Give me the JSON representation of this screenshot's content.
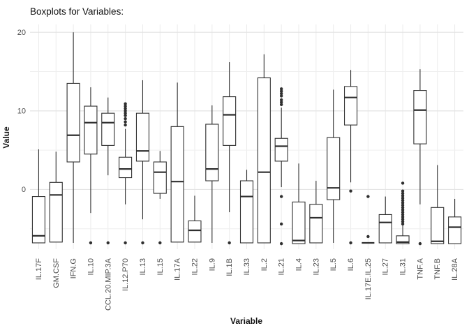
{
  "title": "Boxplots for Variables:",
  "y_axis": {
    "label": "Value",
    "ticks": [
      0,
      10,
      20
    ],
    "minor_ticks": [
      -5,
      5,
      15
    ],
    "ylim": [
      -7.6,
      21.0
    ]
  },
  "x_axis": {
    "label": "Variable"
  },
  "colors": {
    "box_stroke": "#2f2f2f",
    "grid_major": "#e4e4e4",
    "grid_minor": "#efefef",
    "grid_vertical": "#ebebeb",
    "tick_text": "#4d4d4d",
    "panel_bg": "#ffffff"
  },
  "chart_data": {
    "type": "boxplot",
    "title": "Boxplots for Variables:",
    "xlabel": "Variable",
    "ylabel": "Value",
    "ylim": [
      -7.6,
      21.0
    ],
    "grid": true,
    "categories": [
      "IL.17F",
      "GM.CSF",
      "IFN.G",
      "IL.10",
      "CCL.20.MIP.3A",
      "IL.12.P70",
      "IL.13",
      "IL.15",
      "IL.17A",
      "IL.22",
      "IL.9",
      "IL.1B",
      "IL.33",
      "IL.2",
      "IL.21",
      "IL.4",
      "IL.23",
      "IL.5",
      "IL.6",
      "IL.17E.IL.25",
      "IL.27",
      "IL.31",
      "TNF.A",
      "TNF.B",
      "IL.28A"
    ],
    "boxes": [
      {
        "label": "IL.17F",
        "low": -6.8,
        "q1": -6.8,
        "med": -5.9,
        "q3": -0.9,
        "high": 5.1,
        "outliers": []
      },
      {
        "label": "GM.CSF",
        "low": -6.7,
        "q1": -6.7,
        "med": -0.7,
        "q3": 0.9,
        "high": 4.8,
        "outliers": []
      },
      {
        "label": "IFN.G",
        "low": -6.8,
        "q1": 3.5,
        "med": 6.9,
        "q3": 13.5,
        "high": 20.0,
        "outliers": []
      },
      {
        "label": "IL.10",
        "low": -3.0,
        "q1": 4.5,
        "med": 8.5,
        "q3": 10.6,
        "high": 13.0,
        "outliers": [
          -6.8
        ]
      },
      {
        "label": "CCL.20.MIP.3A",
        "low": 1.8,
        "q1": 5.6,
        "med": 8.5,
        "q3": 9.7,
        "high": 11.7,
        "outliers": [
          -6.8
        ]
      },
      {
        "label": "IL.12.P70",
        "low": -1.9,
        "q1": 1.5,
        "med": 2.6,
        "q3": 4.1,
        "high": 7.7,
        "outliers": [
          10.9,
          10.6,
          10.3,
          10.0,
          9.7,
          9.4,
          9.0,
          8.6,
          8.2,
          -6.8
        ]
      },
      {
        "label": "IL.13",
        "low": -3.8,
        "q1": 3.6,
        "med": 4.9,
        "q3": 9.7,
        "high": 13.9,
        "outliers": [
          -6.8
        ]
      },
      {
        "label": "IL.15",
        "low": -1.2,
        "q1": -0.5,
        "med": 2.2,
        "q3": 3.5,
        "high": 4.9,
        "outliers": [
          -6.8
        ]
      },
      {
        "label": "IL.17A",
        "low": -6.7,
        "q1": -6.7,
        "med": 1.0,
        "q3": 8.0,
        "high": 13.6,
        "outliers": []
      },
      {
        "label": "IL.22",
        "low": -6.7,
        "q1": -6.7,
        "med": -5.2,
        "q3": -4.0,
        "high": -0.8,
        "outliers": []
      },
      {
        "label": "IL.9",
        "low": -6.8,
        "q1": 1.1,
        "med": 2.6,
        "q3": 8.3,
        "high": 10.7,
        "outliers": []
      },
      {
        "label": "IL.1B",
        "low": -2.9,
        "q1": 5.6,
        "med": 9.5,
        "q3": 11.8,
        "high": 16.2,
        "outliers": [
          -6.8
        ]
      },
      {
        "label": "IL.33",
        "low": -6.8,
        "q1": -6.8,
        "med": -0.9,
        "q3": 1.1,
        "high": 2.5,
        "outliers": []
      },
      {
        "label": "IL.2",
        "low": -6.8,
        "q1": -6.8,
        "med": 2.2,
        "q3": 14.2,
        "high": 17.2,
        "outliers": []
      },
      {
        "label": "IL.21",
        "low": 0.3,
        "q1": 3.6,
        "med": 5.5,
        "q3": 6.5,
        "high": 10.4,
        "outliers": [
          12.8,
          12.5,
          12.2,
          11.9,
          11.4,
          11.1,
          10.8,
          -0.9,
          -4.4,
          -6.9
        ]
      },
      {
        "label": "IL.4",
        "low": -6.9,
        "q1": -6.9,
        "med": -6.5,
        "q3": -1.6,
        "high": 3.3,
        "outliers": []
      },
      {
        "label": "IL.23",
        "low": -6.8,
        "q1": -6.8,
        "med": -3.6,
        "q3": -1.9,
        "high": 1.1,
        "outliers": []
      },
      {
        "label": "IL.5",
        "low": -6.8,
        "q1": -1.3,
        "med": 0.2,
        "q3": 6.6,
        "high": 12.7,
        "outliers": []
      },
      {
        "label": "IL.6",
        "low": 0.9,
        "q1": 8.2,
        "med": 11.7,
        "q3": 13.1,
        "high": 15.2,
        "outliers": [
          -0.2,
          -6.8
        ]
      },
      {
        "label": "IL.17E.IL.25",
        "low": -6.8,
        "q1": -6.8,
        "med": -6.8,
        "q3": -6.8,
        "high": -6.8,
        "outliers": [
          -0.9,
          -6.0
        ]
      },
      {
        "label": "IL.27",
        "low": -6.8,
        "q1": -6.8,
        "med": -4.2,
        "q3": -3.2,
        "high": -0.9,
        "outliers": []
      },
      {
        "label": "IL.31",
        "low": -6.9,
        "q1": -6.9,
        "med": -6.7,
        "q3": -5.9,
        "high": -4.5,
        "outliers": [
          0.8,
          -0.2,
          -0.5,
          -0.8,
          -1.1,
          -1.4,
          -1.7,
          -2.0,
          -2.3,
          -2.6,
          -2.9,
          -3.2,
          -3.5,
          -3.8,
          -4.1,
          -4.4
        ]
      },
      {
        "label": "TNF.A",
        "low": -1.9,
        "q1": 5.8,
        "med": 10.1,
        "q3": 12.6,
        "high": 15.3,
        "outliers": [
          -6.9
        ]
      },
      {
        "label": "TNF.B",
        "low": -6.9,
        "q1": -6.9,
        "med": -6.6,
        "q3": -2.3,
        "high": 3.1,
        "outliers": []
      },
      {
        "label": "IL.28A",
        "low": -6.9,
        "q1": -6.9,
        "med": -4.8,
        "q3": -3.5,
        "high": -1.2,
        "outliers": []
      }
    ],
    "legend": "none"
  }
}
